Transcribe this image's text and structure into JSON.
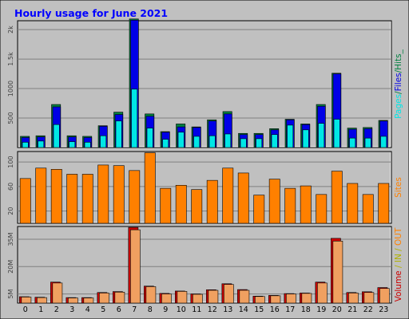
{
  "title": "Hourly usage for June 2021",
  "colors": {
    "background": "#c0c0c0",
    "plot_bg": "#c0c0c0",
    "title": "#0000ff",
    "pages": "#00e6e6",
    "files": "#0000e6",
    "hits": "#008040",
    "visits": "#ff8000",
    "in": "#f0a060",
    "out": "#cc0000",
    "sites_label": "#ff8000",
    "volume_label": "#cc0000",
    "in_label": "#b0b000"
  },
  "hours": [
    "0",
    "1",
    "2",
    "3",
    "4",
    "5",
    "6",
    "7",
    "8",
    "9",
    "10",
    "11",
    "12",
    "13",
    "14",
    "15",
    "16",
    "17",
    "18",
    "19",
    "20",
    "21",
    "22",
    "23"
  ],
  "chart_data": [
    {
      "type": "bar",
      "name": "hits-files-pages",
      "categories": [
        "0",
        "1",
        "2",
        "3",
        "4",
        "5",
        "6",
        "7",
        "8",
        "9",
        "10",
        "11",
        "12",
        "13",
        "14",
        "15",
        "16",
        "17",
        "18",
        "19",
        "20",
        "21",
        "22",
        "23"
      ],
      "ylim": [
        0,
        2150
      ],
      "ticks": [
        {
          "v": 500,
          "label": "500"
        },
        {
          "v": 1000,
          "label": "1000"
        },
        {
          "v": 1500,
          "label": "1.5k"
        },
        {
          "v": 2000,
          "label": "2k"
        }
      ],
      "series": [
        {
          "name": "Hits",
          "values": [
            190,
            200,
            730,
            200,
            190,
            370,
            600,
            2180,
            570,
            270,
            400,
            350,
            470,
            610,
            240,
            240,
            320,
            480,
            400,
            730,
            1260,
            330,
            340,
            460
          ]
        },
        {
          "name": "Files",
          "values": [
            170,
            180,
            690,
            180,
            170,
            360,
            560,
            2160,
            530,
            260,
            350,
            340,
            450,
            570,
            220,
            220,
            300,
            470,
            390,
            700,
            1250,
            310,
            320,
            450
          ]
        },
        {
          "name": "Pages",
          "values": [
            90,
            110,
            390,
            100,
            90,
            200,
            450,
            990,
            330,
            140,
            260,
            190,
            200,
            230,
            150,
            150,
            220,
            380,
            300,
            410,
            480,
            160,
            160,
            190
          ]
        }
      ],
      "legend_parts": [
        {
          "text": "Pages",
          "color_key": "pages"
        },
        {
          "text": "/",
          "color_key": "hits"
        },
        {
          "text": "Files",
          "color_key": "files"
        },
        {
          "text": "/",
          "color_key": "hits"
        },
        {
          "text": "Hits_",
          "color_key": "hits"
        }
      ]
    },
    {
      "type": "bar",
      "name": "sites",
      "categories": [
        "0",
        "1",
        "2",
        "3",
        "4",
        "5",
        "6",
        "7",
        "8",
        "9",
        "10",
        "11",
        "12",
        "13",
        "14",
        "15",
        "16",
        "17",
        "18",
        "19",
        "20",
        "21",
        "22",
        "23"
      ],
      "ylim": [
        0,
        117
      ],
      "ticks": [
        {
          "v": 20,
          "label": "20"
        },
        {
          "v": 60,
          "label": "60"
        },
        {
          "v": 100,
          "label": "100"
        }
      ],
      "series": [
        {
          "name": "Sites",
          "values": [
            73,
            90,
            88,
            80,
            80,
            95,
            94,
            86,
            115,
            57,
            62,
            55,
            70,
            90,
            82,
            46,
            72,
            57,
            61,
            47,
            85,
            65,
            47,
            65
          ]
        }
      ],
      "legend_parts": [
        {
          "text": "Sites",
          "color_key": "sites_label"
        }
      ]
    },
    {
      "type": "bar",
      "name": "volume",
      "categories": [
        "0",
        "1",
        "2",
        "3",
        "4",
        "5",
        "6",
        "7",
        "8",
        "9",
        "10",
        "11",
        "12",
        "13",
        "14",
        "15",
        "16",
        "17",
        "18",
        "19",
        "20",
        "21",
        "22",
        "23"
      ],
      "ylim": [
        0,
        42
      ],
      "ticks": [
        {
          "v": 5,
          "label": "5M"
        },
        {
          "v": 20,
          "label": "20M"
        },
        {
          "v": 35,
          "label": "35M"
        }
      ],
      "series": [
        {
          "name": "Out",
          "values": [
            3.5,
            3.2,
            11.5,
            3,
            3,
            5.8,
            6.3,
            41.5,
            9.3,
            5.3,
            6.6,
            5.0,
            7.3,
            10.6,
            7.4,
            3.8,
            4.2,
            5.2,
            5.5,
            11.5,
            35.5,
            5.8,
            6.2,
            8.5
          ]
        },
        {
          "name": "In",
          "values": [
            3.3,
            3.0,
            11.0,
            2.8,
            2.8,
            5.5,
            6.0,
            40.2,
            9.0,
            5.0,
            6.4,
            4.8,
            7.0,
            10.2,
            7.0,
            3.6,
            4.0,
            5.0,
            5.3,
            11.0,
            34.0,
            5.5,
            5.8,
            8.0
          ]
        }
      ],
      "legend_parts": [
        {
          "text": "Volume",
          "color_key": "volume_label"
        },
        {
          "text": " / ",
          "color_key": "in_label"
        },
        {
          "text": "IN",
          "color_key": "in_label"
        },
        {
          "text": " / ",
          "color_key": "in_label"
        },
        {
          "text": "OUT",
          "color_key": "sites_label"
        }
      ]
    }
  ]
}
